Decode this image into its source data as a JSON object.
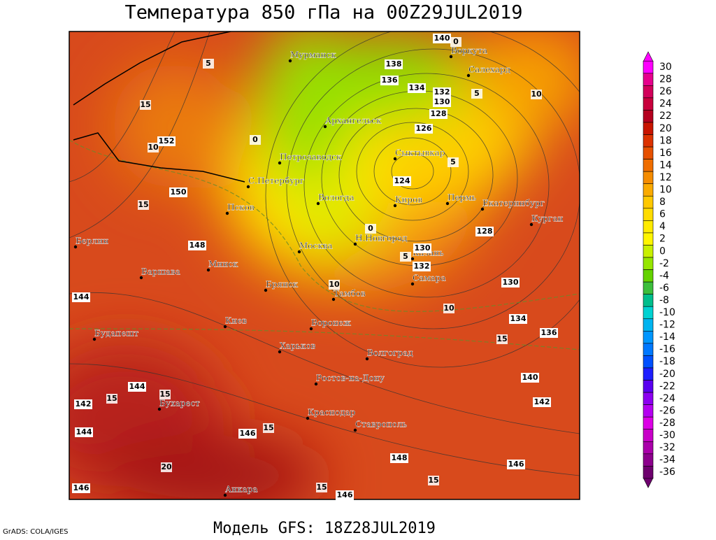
{
  "header": {
    "title": "Температура 850 гПа на 00Z29JUL2019",
    "subtitle": "Модель GFS: 18Z28JUL2019",
    "credit": "GrADS: COLA/IGES"
  },
  "cities": [
    "Мурманск",
    "Воркута",
    "Салехард",
    "Архангельск",
    "Сыктывкар",
    "Петрозаводск",
    "С.Петербург",
    "Вологда",
    "Киров",
    "Пермь",
    "Екатеринбург",
    "Курган",
    "Псков",
    "Берлин",
    "Москва",
    "Н.Новгород",
    "Казань",
    "Минск",
    "Варшава",
    "Самара",
    "Брянск",
    "Тамбов",
    "Киев",
    "Воронеж",
    "Будапешт",
    "Харьков",
    "Волгоград",
    "Ростов-на-Дону",
    "Бухарест",
    "Краснодар",
    "Ставрополь",
    "Анкара"
  ],
  "height_labels": [
    140,
    138,
    136,
    134,
    132,
    130,
    128,
    126,
    124,
    128,
    130,
    132,
    130,
    134,
    136,
    140,
    142,
    146,
    148,
    146,
    144,
    142,
    144,
    146,
    146,
    144,
    148,
    150,
    152
  ],
  "temperature_labels": [
    5,
    10,
    15,
    10,
    0,
    5,
    15,
    0,
    5,
    10,
    10,
    15,
    15,
    15,
    15,
    20,
    15,
    15,
    5,
    0
  ],
  "colorbar": {
    "ticks": [
      30,
      28,
      26,
      24,
      22,
      20,
      18,
      16,
      14,
      12,
      10,
      8,
      6,
      4,
      2,
      0,
      -2,
      -4,
      -6,
      -8,
      -10,
      -12,
      -14,
      -16,
      -18,
      -20,
      -22,
      -24,
      -26,
      -28,
      -30,
      -32,
      -34,
      -36
    ],
    "colors": [
      "#ff00ff",
      "#e6008c",
      "#d2005a",
      "#c8003c",
      "#b4001e",
      "#c81400",
      "#dc3200",
      "#e65000",
      "#f06e00",
      "#f58c00",
      "#faaa00",
      "#ffc800",
      "#ffdc00",
      "#ffeb00",
      "#fff500",
      "#c8f000",
      "#96e600",
      "#64d200",
      "#3cbe3c",
      "#00be8c",
      "#00d2d2",
      "#00b4f0",
      "#0096ff",
      "#0078ff",
      "#0050ff",
      "#1e1eff",
      "#5a00f0",
      "#8c00f0",
      "#b400f0",
      "#dc00e6",
      "#c800c8",
      "#aa00aa",
      "#8c008c",
      "#6e006e"
    ]
  }
}
